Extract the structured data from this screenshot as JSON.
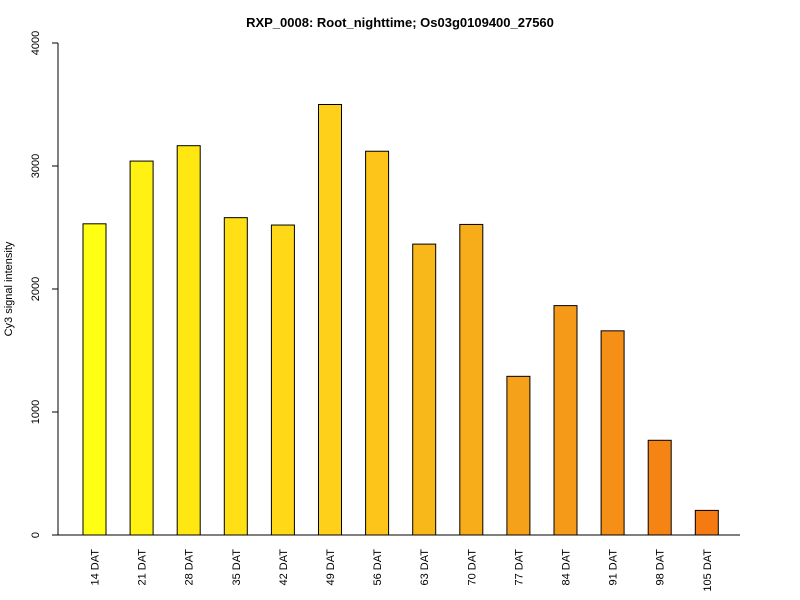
{
  "chart_data": {
    "type": "bar",
    "title": "RXP_0008: Root_nighttime; Os03g0109400_27560",
    "xlabel": "",
    "ylabel": "Cy3 signal intensity",
    "categories": [
      "14 DAT",
      "21 DAT",
      "28 DAT",
      "35 DAT",
      "42 DAT",
      "49 DAT",
      "56 DAT",
      "63 DAT",
      "70 DAT",
      "77 DAT",
      "84 DAT",
      "91 DAT",
      "98 DAT",
      "105 DAT"
    ],
    "values": [
      2530,
      3040,
      3165,
      2580,
      2520,
      3500,
      3120,
      2365,
      2525,
      1290,
      1865,
      1660,
      770,
      200
    ],
    "ylim": [
      0,
      4000
    ],
    "yticks": [
      0,
      1000,
      2000,
      3000,
      4000
    ],
    "colors": [
      "#FFFF14",
      "#FFF212",
      "#FFE812",
      "#FFE014",
      "#FFD818",
      "#FFD01A",
      "#FDC41A",
      "#F9B81A",
      "#F7AC1A",
      "#F5A21A",
      "#F59A18",
      "#F58F16",
      "#F58414",
      "#F57A12"
    ],
    "grid": false,
    "legend": "none"
  }
}
